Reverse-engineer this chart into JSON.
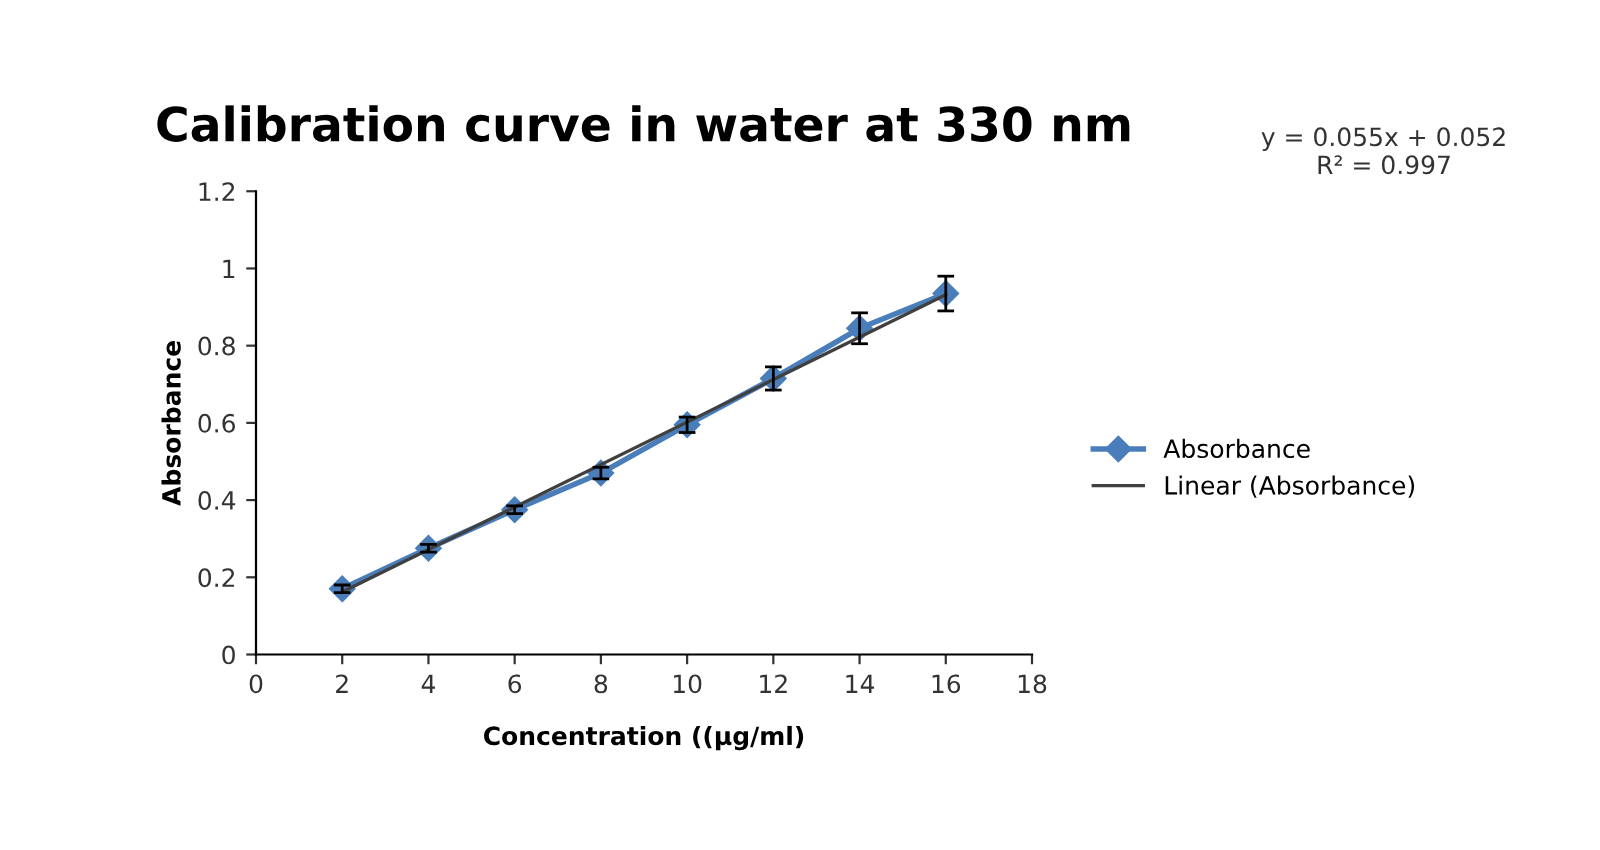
{
  "chart_data": {
    "type": "line",
    "title": "Calibration curve in water at 330 nm",
    "xlabel": "Concentration ((µg/ml)",
    "ylabel": "Absorbance",
    "x": [
      2,
      4,
      6,
      8,
      10,
      12,
      14,
      16
    ],
    "series": [
      {
        "name": "Absorbance",
        "color": "#4a7ebb",
        "values": [
          0.17,
          0.275,
          0.375,
          0.47,
          0.595,
          0.715,
          0.845,
          0.935
        ],
        "errors": [
          0.01,
          0.01,
          0.01,
          0.015,
          0.02,
          0.03,
          0.04,
          0.045
        ],
        "marker": "diamond"
      },
      {
        "name": "Linear (Absorbance)",
        "color": "#404040",
        "type": "line",
        "x": [
          2,
          16
        ],
        "values": [
          0.162,
          0.932
        ],
        "marker": "none"
      }
    ],
    "xlim": [
      0,
      18
    ],
    "xticks": [
      0,
      2,
      4,
      6,
      8,
      10,
      12,
      14,
      16,
      18
    ],
    "ylim": [
      0,
      1.2
    ],
    "yticks": [
      0,
      0.2,
      0.4,
      0.6,
      0.8,
      1,
      1.2
    ],
    "grid": false,
    "legend": "right",
    "annotations": [
      "y = 0.055x + 0.052\nR² = 0.997"
    ]
  }
}
